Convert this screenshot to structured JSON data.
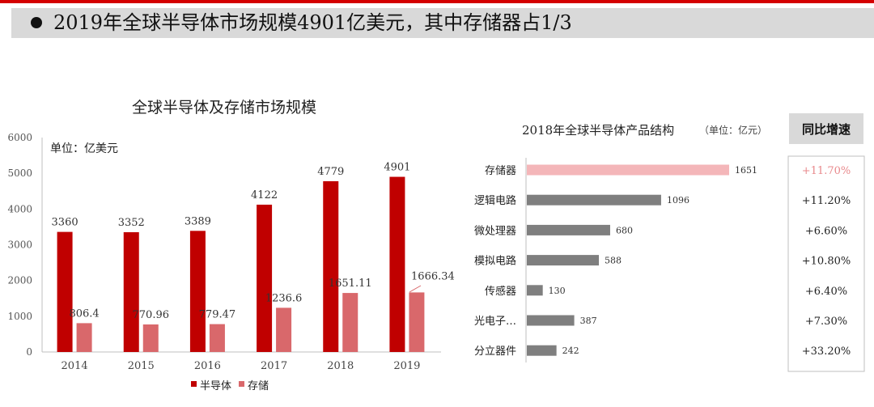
{
  "headline": "2019年全球半导体市场规模4901亿美元，其中存储器占1/3",
  "colors": {
    "accent_red": "#c00000",
    "storage_pink": "#d9686b",
    "storage_highlight": "#f4b6b9",
    "bar_gray": "#7f7f7f",
    "highlight_text": "#e8898c",
    "header_bg": "#d9d9d9"
  },
  "chart_data": [
    {
      "type": "bar",
      "title": "全球半导体及存储市场规模",
      "ylabel": "单位：亿美元",
      "categories": [
        "2014",
        "2015",
        "2016",
        "2017",
        "2018",
        "2019"
      ],
      "series": [
        {
          "name": "半导体",
          "values": [
            3360,
            3352,
            3389,
            4122,
            4779,
            4901
          ],
          "labels": [
            "3360",
            "3352",
            "3389",
            "4122",
            "4779",
            "4901"
          ]
        },
        {
          "name": "存储",
          "values": [
            806.4,
            770.96,
            779.47,
            1236.6,
            1651.11,
            1666.34
          ],
          "labels": [
            "806.4",
            "770.96",
            "779.47",
            "1236.6",
            "1651.11",
            "1666.34"
          ]
        }
      ],
      "yticks": [
        "0",
        "1000",
        "2000",
        "3000",
        "4000",
        "5000",
        "6000"
      ],
      "ylim": [
        0,
        6000
      ],
      "legend_position": "bottom",
      "grid": false
    },
    {
      "type": "bar",
      "orientation": "horizontal",
      "title": "2018年全球半导体产品结构",
      "unit_note": "（单位：亿元）",
      "categories": [
        "存储器",
        "逻辑电路",
        "微处理器",
        "模拟电路",
        "传感器",
        "光电子…",
        "分立器件"
      ],
      "values": [
        1651,
        1096,
        680,
        588,
        130,
        387,
        242
      ],
      "labels": [
        "1651",
        "1096",
        "680",
        "588",
        "130",
        "387",
        "242"
      ],
      "highlight_index": 0,
      "growth_header": "同比增速",
      "growth": [
        "+11.70%",
        "+11.20%",
        "+6.60%",
        "+10.80%",
        "+6.40%",
        "+7.30%",
        "+33.20%"
      ]
    }
  ]
}
